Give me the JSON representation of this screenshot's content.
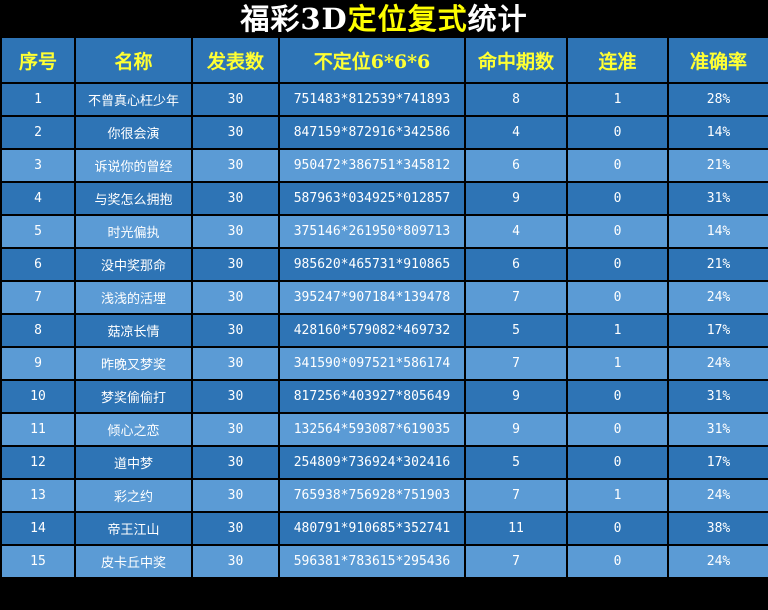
{
  "title": {
    "part1": "福彩3D",
    "part2": "定位复式",
    "part3": "统计"
  },
  "colors": {
    "header_bg": "#2e74b5",
    "row_dark": "#2e74b5",
    "row_light": "#5b9bd5",
    "header_text": "#ffff33",
    "title_accent": "#ffff00"
  },
  "columns": [
    "序号",
    "名称",
    "发表数",
    "不定位6*6*6",
    "命中期数",
    "连准",
    "准确率"
  ],
  "rows": [
    [
      "1",
      "不曾真心枉少年",
      "30",
      "751483*812539*741893",
      "8",
      "1",
      "28%"
    ],
    [
      "2",
      "你很会演",
      "30",
      "847159*872916*342586",
      "4",
      "0",
      "14%"
    ],
    [
      "3",
      "诉说你的曾经",
      "30",
      "950472*386751*345812",
      "6",
      "0",
      "21%"
    ],
    [
      "4",
      "与奖怎么拥抱",
      "30",
      "587963*034925*012857",
      "9",
      "0",
      "31%"
    ],
    [
      "5",
      "时光偏执",
      "30",
      "375146*261950*809713",
      "4",
      "0",
      "14%"
    ],
    [
      "6",
      "没中奖那命",
      "30",
      "985620*465731*910865",
      "6",
      "0",
      "21%"
    ],
    [
      "7",
      "浅浅的活埋",
      "30",
      "395247*907184*139478",
      "7",
      "0",
      "24%"
    ],
    [
      "8",
      "菇凉长情",
      "30",
      "428160*579082*469732",
      "5",
      "1",
      "17%"
    ],
    [
      "9",
      "昨晚又梦奖",
      "30",
      "341590*097521*586174",
      "7",
      "1",
      "24%"
    ],
    [
      "10",
      "梦奖偷偷打",
      "30",
      "817256*403927*805649",
      "9",
      "0",
      "31%"
    ],
    [
      "11",
      "倾心之恋",
      "30",
      "132564*593087*619035",
      "9",
      "0",
      "31%"
    ],
    [
      "12",
      "道中梦",
      "30",
      "254809*736924*302416",
      "5",
      "0",
      "17%"
    ],
    [
      "13",
      "彩之约",
      "30",
      "765938*756928*751903",
      "7",
      "1",
      "24%"
    ],
    [
      "14",
      "帝王江山",
      "30",
      "480791*910685*352741",
      "11",
      "0",
      "38%"
    ],
    [
      "15",
      "皮卡丘中奖",
      "30",
      "596381*783615*295436",
      "7",
      "0",
      "24%"
    ]
  ]
}
